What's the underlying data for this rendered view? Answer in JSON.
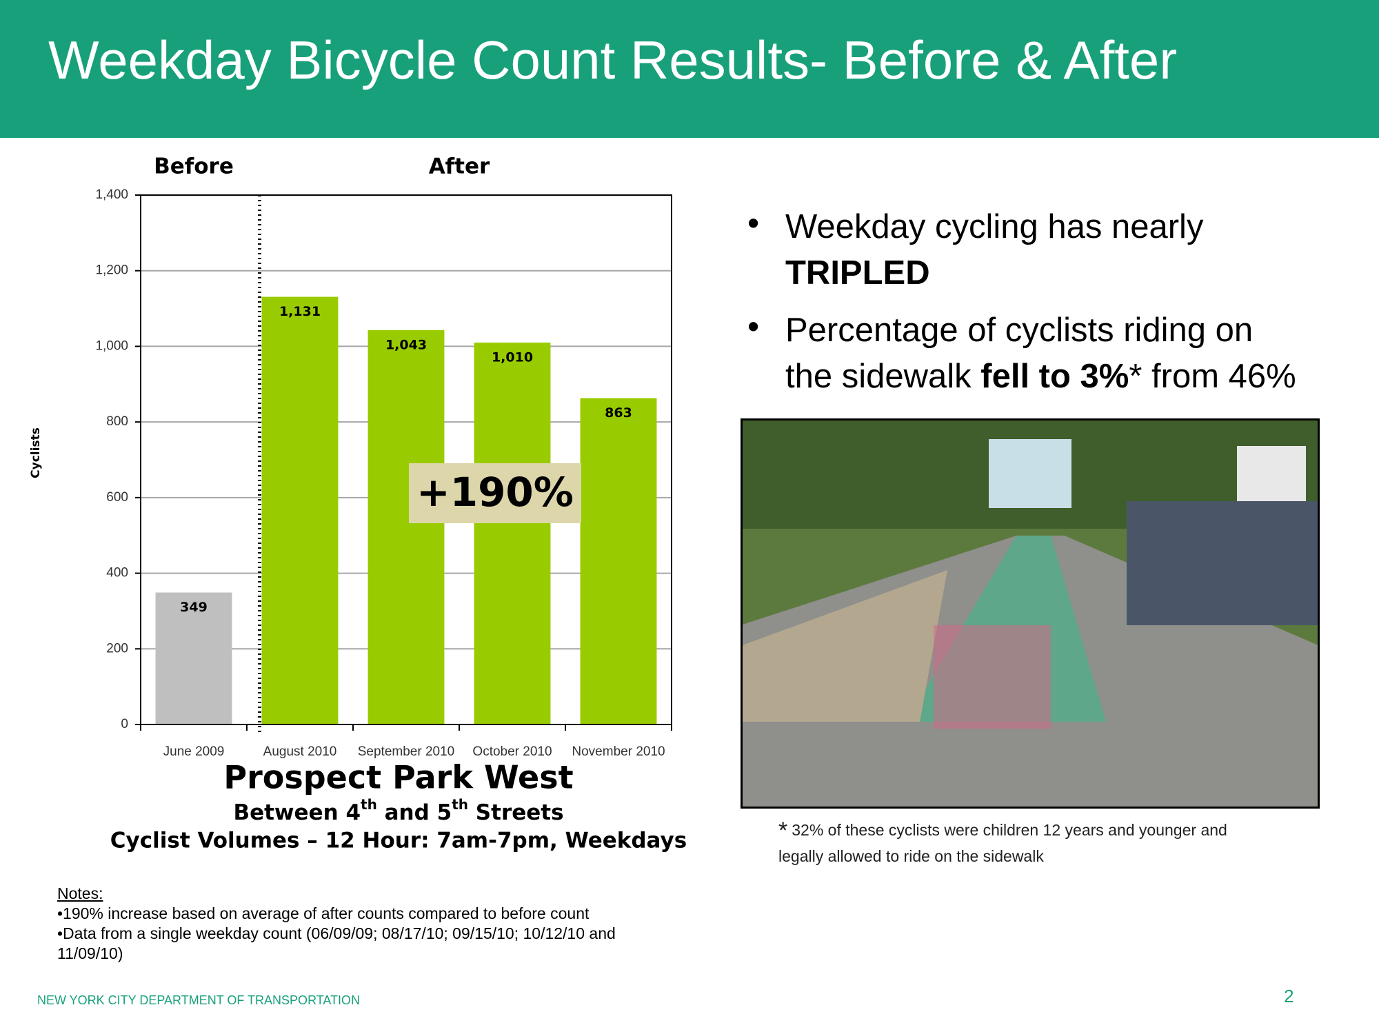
{
  "header": {
    "title": "Weekday Bicycle Count Results- Before & After"
  },
  "chart_data": {
    "type": "bar",
    "y_label": "Cyclists",
    "group_labels": [
      "Before",
      "After"
    ],
    "categories": [
      "June 2009",
      "August 2010",
      "September 2010",
      "October 2010",
      "November 2010"
    ],
    "values": [
      349,
      1131,
      1043,
      1010,
      863
    ],
    "value_labels": [
      "349",
      "1,131",
      "1,043",
      "1,010",
      "863"
    ],
    "colors": [
      "#bfbfbf",
      "#99cc00",
      "#99cc00",
      "#99cc00",
      "#99cc00"
    ],
    "ylim": [
      0,
      1400
    ],
    "yticks": [
      0,
      200,
      400,
      600,
      800,
      {
        "value": 1000,
        "label": "1,000"
      },
      {
        "value": 1200,
        "label": "1,200"
      },
      {
        "value": 1400,
        "label": "1,400"
      }
    ],
    "grid": true,
    "annotation": "+190%",
    "title": "Prospect Park West",
    "subtitle": [
      {
        "text": "Between 4"
      },
      {
        "text": "th",
        "sup": true
      },
      {
        "text": " and 5"
      },
      {
        "text": "th",
        "sup": true
      },
      {
        "text": " Streets"
      }
    ],
    "subtitle2": "Cyclist Volumes – 12 Hour: 7am-7pm, Weekdays"
  },
  "bullets": [
    {
      "marker": "•",
      "lines": [
        [
          {
            "text": "Weekday cycling  has nearly"
          }
        ],
        [
          {
            "text": "TRIPLED",
            "bold": true
          }
        ]
      ]
    },
    {
      "marker": "•",
      "lines": [
        [
          {
            "text": "Percentage of cyclists riding on"
          }
        ],
        [
          {
            "text": "the sidewalk "
          },
          {
            "text": "fell to 3%",
            "bold": true
          },
          {
            "text": "* from 46%"
          }
        ]
      ]
    }
  ],
  "photo_caption": {
    "marker": "*",
    "lines": [
      "32% of these cyclists were children 12 years and younger and",
      "legally allowed to ride on the sidewalk"
    ]
  },
  "notes": {
    "heading": "Notes:",
    "items": [
      "•190% increase based on average of after counts compared to before count",
      "•Data from a single weekday count (06/09/09; 08/17/10; 09/15/10; 10/12/10 and 11/09/10)"
    ]
  },
  "footer": "NEW YORK CITY DEPARTMENT OF TRANSPORTATION",
  "page_number": "2"
}
